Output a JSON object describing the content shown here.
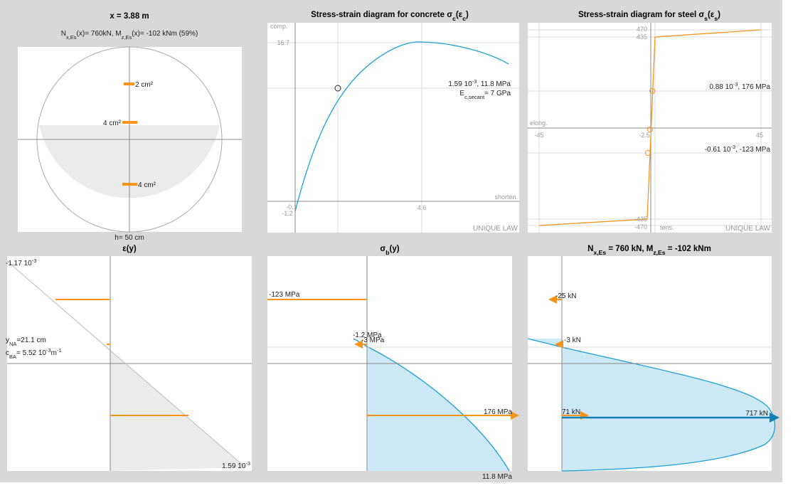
{
  "panels": [
    {
      "title": "x = 3.88 m",
      "subtitle": [
        "N",
        {
          "sub": "x,Es"
        },
        "(x)= 760kN, M",
        {
          "sub": "z,Es"
        },
        "(x)= -102 kNm (59%)"
      ],
      "labels": [
        "2 cm²",
        "4 cm²",
        "4 cm²",
        "h= 50 cm"
      ]
    },
    {
      "title": [
        "Stress-strain diagram for concrete σ",
        {
          "sub": "c"
        },
        "(ε",
        {
          "sub": "c"
        },
        ")"
      ],
      "ticks": [
        "16.7",
        "4.6",
        "-0.1",
        "-1.2"
      ],
      "labels": [
        "comp.",
        "shorten.",
        "UNIQUE LAW"
      ],
      "annotations": [
        [
          "1.59 10",
          {
            "sup": "-3"
          },
          ", 11.8 MPa"
        ],
        [
          "E",
          {
            "sub": "c,secant"
          },
          "= 7 GPa"
        ]
      ]
    },
    {
      "title": [
        "Stress-strain diagram for steel σ",
        {
          "sub": "s"
        },
        "(ε",
        {
          "sub": "s"
        },
        ")"
      ],
      "ticks": [
        "470",
        "435",
        "-45",
        "-2.5",
        "45",
        "-435",
        "-470"
      ],
      "labels": [
        "elong.",
        "tens.",
        "UNIQUE LAW"
      ],
      "annotations": [
        [
          "0.88 10",
          {
            "sup": "-3"
          },
          ", 176 MPa"
        ],
        [
          "-0.61 10",
          {
            "sup": "-3"
          },
          ", -123 MPa"
        ]
      ]
    },
    {
      "title": "ε(y)",
      "labels": [
        [
          "-1.17 10",
          {
            "sup": "-3"
          }
        ],
        [
          "y",
          {
            "sub": "NA"
          },
          "=21.1 cm"
        ],
        [
          "c",
          {
            "sub": "BA"
          },
          "= 5.52 10",
          {
            "sup": "-3"
          },
          "m",
          {
            "sup": "-1"
          }
        ],
        [
          "1.59 10",
          {
            "sup": "-3"
          }
        ]
      ]
    },
    {
      "title": [
        "σ",
        {
          "sub": "b"
        },
        "(y)"
      ],
      "labels": [
        "-123 MPa",
        "-1.2 MPa",
        "-3 MPa",
        "176 MPa",
        "11.8 MPa"
      ]
    },
    {
      "title": [
        "N",
        {
          "sub": "x,Es"
        },
        " = 760 kN, M",
        {
          "sub": "z,Es"
        },
        " = -102 kNm"
      ],
      "labels": [
        "-25 kN",
        "-3 kN",
        "71 kN",
        "717 kN"
      ]
    }
  ]
}
